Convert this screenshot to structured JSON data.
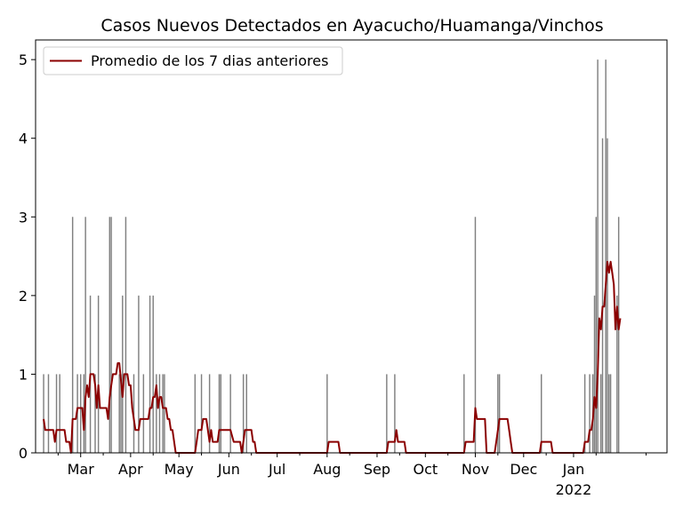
{
  "chart_data": {
    "type": "bar",
    "title": "Casos Nuevos Detectados en Ayacucho/Huamanga/Vinchos",
    "xlabel": "",
    "ylabel": "",
    "x_domain": [
      "2021-02-01",
      "2022-02-28"
    ],
    "ylim": [
      0,
      5.25
    ],
    "y_ticks": [
      0,
      1,
      2,
      3,
      4,
      5
    ],
    "x_ticks": [
      {
        "date": "2021-03-01",
        "label": "Mar",
        "year": ""
      },
      {
        "date": "2021-04-01",
        "label": "Apr",
        "year": ""
      },
      {
        "date": "2021-05-01",
        "label": "May",
        "year": ""
      },
      {
        "date": "2021-06-01",
        "label": "Jun",
        "year": ""
      },
      {
        "date": "2021-07-01",
        "label": "Jul",
        "year": ""
      },
      {
        "date": "2021-08-01",
        "label": "Aug",
        "year": ""
      },
      {
        "date": "2021-09-01",
        "label": "Sep",
        "year": ""
      },
      {
        "date": "2021-10-01",
        "label": "Oct",
        "year": ""
      },
      {
        "date": "2021-11-01",
        "label": "Nov",
        "year": ""
      },
      {
        "date": "2021-12-01",
        "label": "Dec",
        "year": ""
      },
      {
        "date": "2022-01-01",
        "label": "Jan",
        "year": "2022"
      }
    ],
    "grid": false,
    "legend": {
      "position": "upper-left"
    },
    "colors": {
      "bars": "#808080",
      "line": "#8b0000",
      "axes": "#000000"
    },
    "series": [
      {
        "name": "",
        "kind": "bar",
        "points": [
          [
            "2021-02-06",
            1
          ],
          [
            "2021-02-09",
            1
          ],
          [
            "2021-02-14",
            1
          ],
          [
            "2021-02-16",
            1
          ],
          [
            "2021-02-24",
            3
          ],
          [
            "2021-02-27",
            1
          ],
          [
            "2021-03-01",
            1
          ],
          [
            "2021-03-03",
            1
          ],
          [
            "2021-03-04",
            3
          ],
          [
            "2021-03-07",
            2
          ],
          [
            "2021-03-10",
            1
          ],
          [
            "2021-03-12",
            2
          ],
          [
            "2021-03-19",
            3
          ],
          [
            "2021-03-20",
            3
          ],
          [
            "2021-03-25",
            1
          ],
          [
            "2021-03-26",
            1
          ],
          [
            "2021-03-27",
            2
          ],
          [
            "2021-03-29",
            3
          ],
          [
            "2021-04-03",
            1
          ],
          [
            "2021-04-06",
            2
          ],
          [
            "2021-04-09",
            1
          ],
          [
            "2021-04-13",
            2
          ],
          [
            "2021-04-15",
            2
          ],
          [
            "2021-04-17",
            1
          ],
          [
            "2021-04-19",
            1
          ],
          [
            "2021-04-21",
            1
          ],
          [
            "2021-04-22",
            1
          ],
          [
            "2021-05-11",
            1
          ],
          [
            "2021-05-15",
            1
          ],
          [
            "2021-05-20",
            1
          ],
          [
            "2021-05-26",
            1
          ],
          [
            "2021-05-27",
            1
          ],
          [
            "2021-06-02",
            1
          ],
          [
            "2021-06-10",
            1
          ],
          [
            "2021-06-12",
            1
          ],
          [
            "2021-08-01",
            1
          ],
          [
            "2021-09-07",
            1
          ],
          [
            "2021-09-12",
            1
          ],
          [
            "2021-10-25",
            1
          ],
          [
            "2021-11-01",
            3
          ],
          [
            "2021-11-15",
            1
          ],
          [
            "2021-11-16",
            1
          ],
          [
            "2021-12-12",
            1
          ],
          [
            "2022-01-08",
            1
          ],
          [
            "2022-01-11",
            1
          ],
          [
            "2022-01-13",
            1
          ],
          [
            "2022-01-14",
            2
          ],
          [
            "2022-01-15",
            3
          ],
          [
            "2022-01-16",
            5
          ],
          [
            "2022-01-18",
            1
          ],
          [
            "2022-01-19",
            4
          ],
          [
            "2022-01-21",
            5
          ],
          [
            "2022-01-22",
            4
          ],
          [
            "2022-01-23",
            1
          ],
          [
            "2022-01-24",
            1
          ],
          [
            "2022-01-28",
            2
          ],
          [
            "2022-01-29",
            3
          ]
        ]
      },
      {
        "name": "Promedio de los 7 dias anteriores",
        "kind": "line",
        "points": [
          [
            "2021-02-06",
            0.43
          ],
          [
            "2021-02-07",
            0.29
          ],
          [
            "2021-02-12",
            0.29
          ],
          [
            "2021-02-13",
            0.14
          ],
          [
            "2021-02-14",
            0.29
          ],
          [
            "2021-02-19",
            0.29
          ],
          [
            "2021-02-20",
            0.14
          ],
          [
            "2021-02-22",
            0.14
          ],
          [
            "2021-02-23",
            0
          ],
          [
            "2021-02-24",
            0.43
          ],
          [
            "2021-02-26",
            0.43
          ],
          [
            "2021-02-27",
            0.57
          ],
          [
            "2021-03-02",
            0.57
          ],
          [
            "2021-03-03",
            0.29
          ],
          [
            "2021-03-04",
            0.71
          ],
          [
            "2021-03-05",
            0.86
          ],
          [
            "2021-03-06",
            0.71
          ],
          [
            "2021-03-07",
            1.0
          ],
          [
            "2021-03-09",
            1.0
          ],
          [
            "2021-03-10",
            0.86
          ],
          [
            "2021-03-11",
            0.57
          ],
          [
            "2021-03-12",
            0.86
          ],
          [
            "2021-03-13",
            0.57
          ],
          [
            "2021-03-17",
            0.57
          ],
          [
            "2021-03-18",
            0.43
          ],
          [
            "2021-03-19",
            0.71
          ],
          [
            "2021-03-20",
            0.86
          ],
          [
            "2021-03-21",
            1.0
          ],
          [
            "2021-03-23",
            1.0
          ],
          [
            "2021-03-24",
            1.14
          ],
          [
            "2021-03-25",
            1.14
          ],
          [
            "2021-03-27",
            0.71
          ],
          [
            "2021-03-28",
            1.0
          ],
          [
            "2021-03-30",
            1.0
          ],
          [
            "2021-03-31",
            0.86
          ],
          [
            "2021-04-01",
            0.86
          ],
          [
            "2021-04-02",
            0.57
          ],
          [
            "2021-04-03",
            0.43
          ],
          [
            "2021-04-04",
            0.29
          ],
          [
            "2021-04-06",
            0.29
          ],
          [
            "2021-04-07",
            0.43
          ],
          [
            "2021-04-12",
            0.43
          ],
          [
            "2021-04-13",
            0.57
          ],
          [
            "2021-04-14",
            0.57
          ],
          [
            "2021-04-15",
            0.71
          ],
          [
            "2021-04-16",
            0.71
          ],
          [
            "2021-04-17",
            0.86
          ],
          [
            "2021-04-18",
            0.57
          ],
          [
            "2021-04-19",
            0.71
          ],
          [
            "2021-04-20",
            0.71
          ],
          [
            "2021-04-21",
            0.57
          ],
          [
            "2021-04-23",
            0.57
          ],
          [
            "2021-04-24",
            0.43
          ],
          [
            "2021-04-25",
            0.43
          ],
          [
            "2021-04-26",
            0.29
          ],
          [
            "2021-04-27",
            0.29
          ],
          [
            "2021-04-29",
            0
          ],
          [
            "2021-05-11",
            0
          ],
          [
            "2021-05-12",
            0.14
          ],
          [
            "2021-05-13",
            0.29
          ],
          [
            "2021-05-15",
            0.29
          ],
          [
            "2021-05-16",
            0.43
          ],
          [
            "2021-05-18",
            0.43
          ],
          [
            "2021-05-20",
            0.14
          ],
          [
            "2021-05-21",
            0.29
          ],
          [
            "2021-05-22",
            0.14
          ],
          [
            "2021-05-25",
            0.14
          ],
          [
            "2021-05-26",
            0.29
          ],
          [
            "2021-06-02",
            0.29
          ],
          [
            "2021-06-04",
            0.14
          ],
          [
            "2021-06-08",
            0.14
          ],
          [
            "2021-06-09",
            0
          ],
          [
            "2021-06-10",
            0.14
          ],
          [
            "2021-06-11",
            0.29
          ],
          [
            "2021-06-15",
            0.29
          ],
          [
            "2021-06-16",
            0.14
          ],
          [
            "2021-06-17",
            0.14
          ],
          [
            "2021-06-18",
            0
          ],
          [
            "2021-08-01",
            0
          ],
          [
            "2021-08-02",
            0.14
          ],
          [
            "2021-08-08",
            0.14
          ],
          [
            "2021-08-09",
            0
          ],
          [
            "2021-09-07",
            0
          ],
          [
            "2021-09-08",
            0.14
          ],
          [
            "2021-09-12",
            0.14
          ],
          [
            "2021-09-13",
            0.29
          ],
          [
            "2021-09-14",
            0.14
          ],
          [
            "2021-09-18",
            0.14
          ],
          [
            "2021-09-19",
            0
          ],
          [
            "2021-10-25",
            0
          ],
          [
            "2021-10-26",
            0.14
          ],
          [
            "2021-10-31",
            0.14
          ],
          [
            "2021-11-01",
            0.57
          ],
          [
            "2021-11-02",
            0.43
          ],
          [
            "2021-11-07",
            0.43
          ],
          [
            "2021-11-08",
            0
          ],
          [
            "2021-11-13",
            0
          ],
          [
            "2021-11-14",
            0.14
          ],
          [
            "2021-11-16",
            0.43
          ],
          [
            "2021-11-21",
            0.43
          ],
          [
            "2021-11-22",
            0.29
          ],
          [
            "2021-11-23",
            0.14
          ],
          [
            "2021-11-24",
            0
          ],
          [
            "2021-12-11",
            0
          ],
          [
            "2021-12-12",
            0.14
          ],
          [
            "2021-12-18",
            0.14
          ],
          [
            "2021-12-19",
            0
          ],
          [
            "2022-01-07",
            0
          ],
          [
            "2022-01-08",
            0.14
          ],
          [
            "2022-01-10",
            0.14
          ],
          [
            "2022-01-11",
            0.29
          ],
          [
            "2022-01-12",
            0.29
          ],
          [
            "2022-01-13",
            0.43
          ],
          [
            "2022-01-14",
            0.71
          ],
          [
            "2022-01-15",
            0.57
          ],
          [
            "2022-01-16",
            1.0
          ],
          [
            "2022-01-17",
            1.71
          ],
          [
            "2022-01-18",
            1.57
          ],
          [
            "2022-01-19",
            1.86
          ],
          [
            "2022-01-20",
            1.86
          ],
          [
            "2022-01-21",
            2.14
          ],
          [
            "2022-01-22",
            2.43
          ],
          [
            "2022-01-23",
            2.29
          ],
          [
            "2022-01-24",
            2.43
          ],
          [
            "2022-01-25",
            2.29
          ],
          [
            "2022-01-26",
            2.14
          ],
          [
            "2022-01-27",
            1.57
          ],
          [
            "2022-01-28",
            1.86
          ],
          [
            "2022-01-29",
            1.57
          ],
          [
            "2022-01-30",
            1.71
          ]
        ]
      }
    ]
  }
}
